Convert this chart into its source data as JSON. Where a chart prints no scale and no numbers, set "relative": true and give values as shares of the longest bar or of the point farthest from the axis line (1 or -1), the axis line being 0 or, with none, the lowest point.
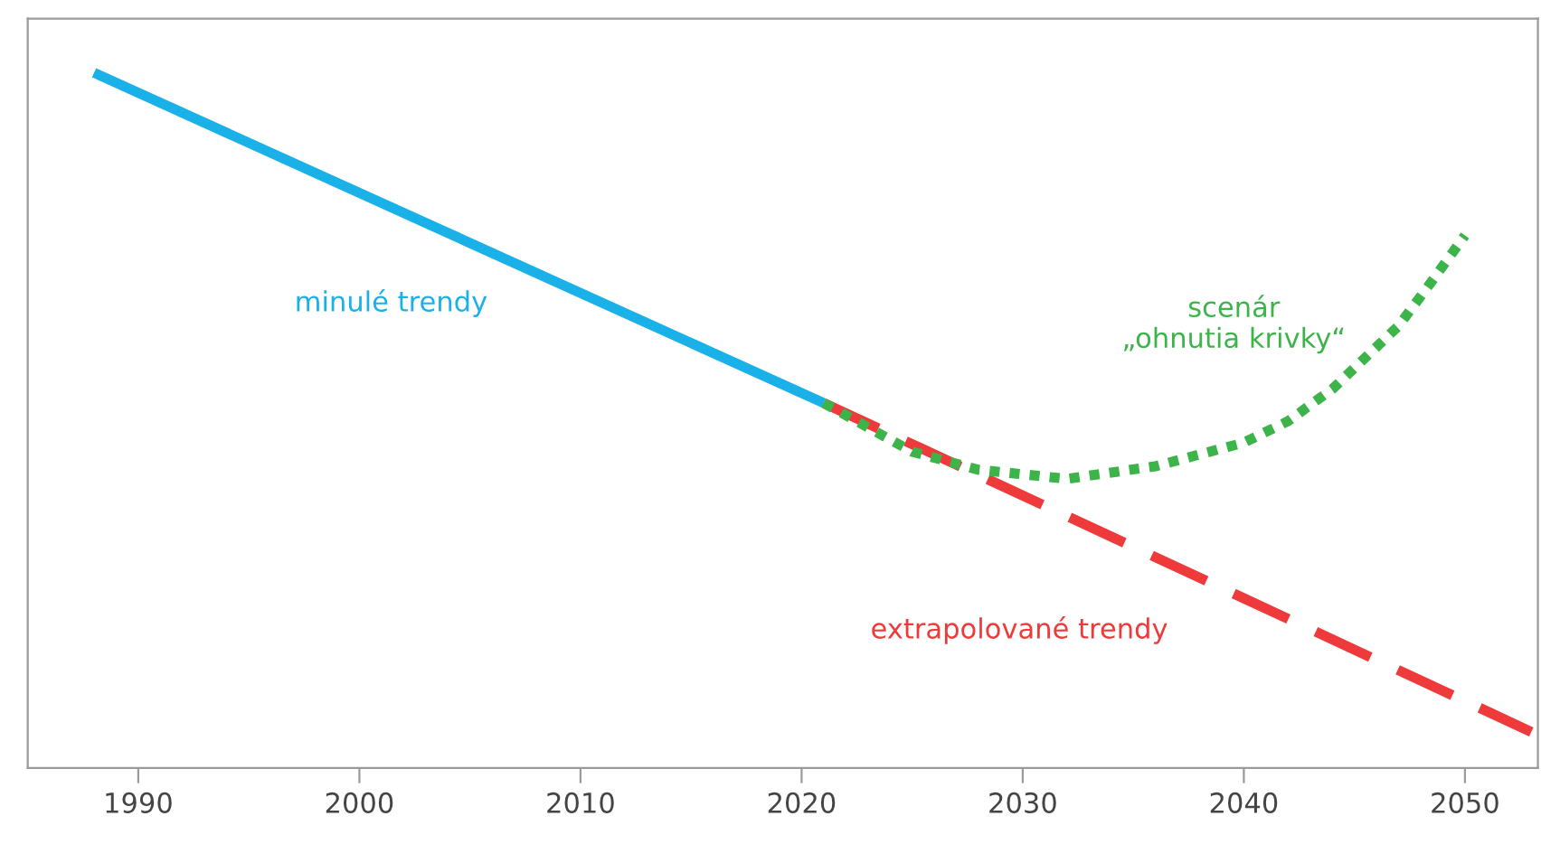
{
  "chart_data": {
    "type": "line",
    "relative": true,
    "xlim": [
      1985,
      2053.3
    ],
    "xticks": [
      1990,
      2000,
      2010,
      2020,
      2030,
      2040,
      2050
    ],
    "grid": false,
    "legend": false,
    "series": [
      {
        "name": "minulé trendy",
        "color": "#1ab0e8",
        "line_style": "solid",
        "x": [
          1988,
          2021
        ],
        "values": [
          1,
          0.525
        ]
      },
      {
        "name": "extrapolované trendy",
        "color": "#ee3a3a",
        "line_style": "dashed",
        "x": [
          2021,
          2053
        ],
        "values": [
          0.525,
          0.052
        ]
      },
      {
        "name": "scenár\n„ohnutia krivky“",
        "color": "#3cb44a",
        "line_style": "dotted",
        "x": [
          2021,
          2025,
          2028,
          2032,
          2036,
          2040,
          2042,
          2044,
          2047,
          2048.5,
          2050
        ],
        "values": [
          0.525,
          0.455,
          0.429,
          0.416,
          0.434,
          0.468,
          0.499,
          0.545,
          0.636,
          0.7,
          0.766
        ]
      }
    ]
  }
}
